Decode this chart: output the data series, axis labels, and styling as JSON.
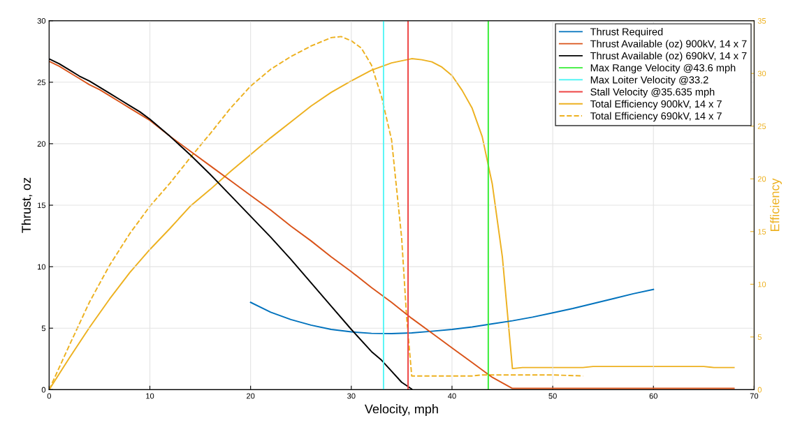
{
  "chart_data": {
    "type": "line",
    "xlabel": "Velocity, mph",
    "ylabel": "Thrust, oz",
    "y2label": "Efficiency",
    "xlim": [
      0,
      70
    ],
    "xticks": [
      0,
      10,
      20,
      30,
      40,
      50,
      60,
      70
    ],
    "ylim": [
      0,
      30
    ],
    "yticks": [
      0,
      5,
      10,
      15,
      20,
      25,
      30
    ],
    "y2lim": [
      0,
      35
    ],
    "y2ticks": [
      0,
      5,
      10,
      15,
      20,
      25,
      30,
      35
    ],
    "grid": true,
    "legend": "top right",
    "marker": "none",
    "series": [
      {
        "name": "Thrust Required",
        "color": "#0072bd",
        "line_style": "solid",
        "x": [
          20,
          22,
          24,
          26,
          28,
          30,
          32,
          34,
          36,
          38,
          40,
          42,
          44,
          46,
          48,
          50,
          52,
          54,
          56,
          58,
          60
        ],
        "values": [
          7.1,
          6.3,
          5.7,
          5.25,
          4.9,
          4.7,
          4.58,
          4.56,
          4.62,
          4.75,
          4.9,
          5.1,
          5.35,
          5.6,
          5.9,
          6.25,
          6.6,
          7.0,
          7.4,
          7.8,
          8.15
        ]
      },
      {
        "name": "Thrust Available (oz) 900kV, 14 x 7",
        "color": "#d95319",
        "line_style": "solid",
        "x": [
          0,
          1,
          2,
          3,
          4,
          5,
          6,
          7,
          8,
          9,
          10,
          12,
          14,
          16,
          18,
          20,
          22,
          24,
          26,
          28,
          30,
          32,
          34,
          36,
          38,
          40,
          42,
          44,
          46,
          68
        ],
        "values": [
          26.7,
          26.3,
          25.8,
          25.3,
          24.8,
          24.4,
          23.9,
          23.4,
          22.9,
          22.4,
          21.9,
          20.6,
          19.4,
          18.2,
          17.0,
          15.8,
          14.6,
          13.3,
          12.1,
          10.8,
          9.6,
          8.3,
          7.1,
          5.8,
          4.6,
          3.4,
          2.2,
          1.0,
          0.1,
          0.1
        ]
      },
      {
        "name": "Thrust Available (oz) 690kV, 14 x 7",
        "color": "#000000",
        "line_style": "solid",
        "x": [
          0,
          1,
          2,
          3,
          4,
          5,
          6,
          7,
          8,
          9,
          10,
          12,
          14,
          16,
          18,
          20,
          22,
          24,
          26,
          28,
          30,
          32,
          33,
          34,
          35,
          36
        ],
        "values": [
          26.9,
          26.5,
          26.0,
          25.5,
          25.1,
          24.6,
          24.1,
          23.6,
          23.1,
          22.6,
          22.0,
          20.6,
          19.1,
          17.5,
          15.8,
          14.1,
          12.4,
          10.6,
          8.7,
          6.8,
          4.9,
          3.1,
          2.4,
          1.5,
          0.6,
          0.05
        ]
      },
      {
        "name": "Max Range Velocity @43.6 mph",
        "color": "#33ee33",
        "line_style": "solid",
        "x": [
          43.6,
          43.6
        ],
        "values": [
          0,
          30
        ]
      },
      {
        "name": "Max Loiter Velocity @33.2",
        "color": "#55f5f5",
        "line_style": "solid",
        "x": [
          33.2,
          33.2
        ],
        "values": [
          0,
          30
        ]
      },
      {
        "name": "Stall Velocity @35.635 mph",
        "color": "#ee4444",
        "line_style": "solid",
        "x": [
          35.635,
          35.635
        ],
        "values": [
          0,
          30
        ]
      },
      {
        "name": "Total Efficiency 900kV, 14 x 7",
        "color": "#edb120",
        "line_style": "solid",
        "axis": "y2",
        "x": [
          0,
          2,
          4,
          6,
          8,
          10,
          12,
          14,
          16,
          18,
          20,
          22,
          24,
          26,
          28,
          30,
          32,
          34,
          36,
          37,
          38,
          39,
          40,
          41,
          42,
          43,
          44,
          45,
          46,
          47,
          53,
          54,
          65,
          66,
          68
        ],
        "values": [
          0,
          3.0,
          5.9,
          8.6,
          11.1,
          13.3,
          15.3,
          17.4,
          19.0,
          20.7,
          22.3,
          23.9,
          25.4,
          26.9,
          28.2,
          29.3,
          30.3,
          31.0,
          31.4,
          31.3,
          31.1,
          30.6,
          29.8,
          28.4,
          26.7,
          24.0,
          19.5,
          12.6,
          2.0,
          2.1,
          2.1,
          2.2,
          2.2,
          2.1,
          2.1
        ]
      },
      {
        "name": "Total Efficiency 690kV, 14 x 7",
        "color": "#edb120",
        "line_style": "dashed",
        "axis": "y2",
        "x": [
          0,
          2,
          4,
          6,
          8,
          10,
          12,
          14,
          16,
          18,
          20,
          22,
          24,
          26,
          28,
          29,
          30,
          31,
          32,
          33,
          34,
          35,
          35.5,
          36,
          42,
          43,
          50,
          53
        ],
        "values": [
          0,
          4.2,
          8.3,
          11.8,
          14.8,
          17.4,
          19.6,
          22.0,
          24.3,
          26.7,
          28.8,
          30.4,
          31.6,
          32.6,
          33.4,
          33.5,
          33.1,
          32.4,
          30.8,
          27.8,
          23.7,
          14.4,
          6.8,
          1.3,
          1.3,
          1.4,
          1.4,
          1.3
        ]
      }
    ]
  }
}
